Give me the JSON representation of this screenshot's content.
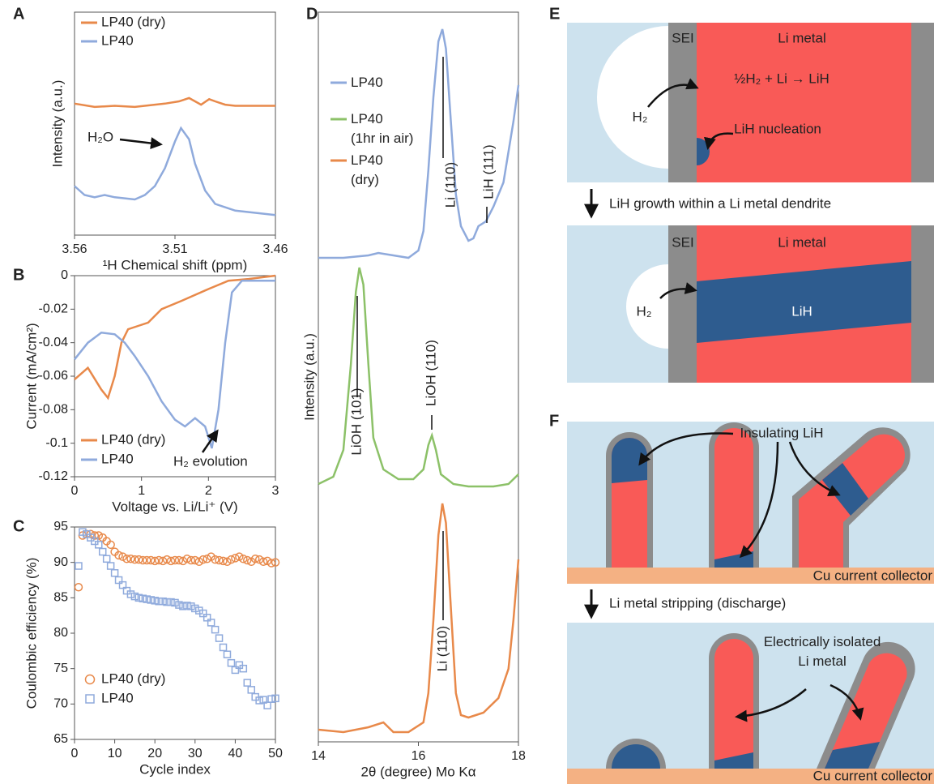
{
  "chart_data": [
    {
      "type": "line",
      "panel": "A",
      "xlabel": "¹H Chemical shift (ppm)",
      "ylabel": "Intensity (a.u.)",
      "xlim": [
        3.56,
        3.46
      ],
      "xticks": [
        3.56,
        3.51,
        3.46
      ],
      "ylim": [
        0,
        1
      ],
      "legend": "upper left",
      "annotations": [
        "H₂O"
      ],
      "series": [
        {
          "name": "LP40 (dry)",
          "color": "#e8894a",
          "x": [
            3.56,
            3.55,
            3.54,
            3.53,
            3.52,
            3.515,
            3.508,
            3.503,
            3.5,
            3.497,
            3.493,
            3.49,
            3.485,
            3.48,
            3.47,
            3.46
          ],
          "values": [
            0.59,
            0.575,
            0.58,
            0.575,
            0.585,
            0.59,
            0.6,
            0.615,
            0.6,
            0.585,
            0.61,
            0.6,
            0.585,
            0.58,
            0.58,
            0.58
          ]
        },
        {
          "name": "LP40",
          "color": "#8faadc",
          "x": [
            3.56,
            3.555,
            3.55,
            3.545,
            3.54,
            3.53,
            3.525,
            3.52,
            3.515,
            3.51,
            3.507,
            3.503,
            3.5,
            3.495,
            3.49,
            3.48,
            3.47,
            3.46
          ],
          "values": [
            0.22,
            0.18,
            0.17,
            0.18,
            0.17,
            0.16,
            0.18,
            0.22,
            0.3,
            0.42,
            0.48,
            0.43,
            0.32,
            0.2,
            0.14,
            0.11,
            0.1,
            0.09
          ]
        }
      ]
    },
    {
      "type": "line",
      "panel": "B",
      "xlabel": "Voltage vs. Li/Li⁺ (V)",
      "ylabel": "Current (mA/cm²)",
      "xlim": [
        0,
        3
      ],
      "xticks": [
        0,
        1,
        2,
        3
      ],
      "ylim": [
        -0.12,
        0
      ],
      "yticks": [
        0,
        -0.02,
        -0.04,
        -0.06,
        -0.08,
        -0.1,
        -0.12
      ],
      "legend": "lower left",
      "annotations": [
        "H₂ evolution"
      ],
      "series": [
        {
          "name": "LP40 (dry)",
          "color": "#e8894a",
          "x": [
            0,
            0.2,
            0.4,
            0.5,
            0.6,
            0.7,
            0.8,
            0.95,
            1.1,
            1.3,
            1.6,
            2,
            2.3,
            2.6,
            3
          ],
          "values": [
            -0.062,
            -0.055,
            -0.068,
            -0.073,
            -0.06,
            -0.04,
            -0.032,
            -0.03,
            -0.028,
            -0.02,
            -0.015,
            -0.008,
            -0.003,
            -0.002,
            0
          ]
        },
        {
          "name": "LP40",
          "color": "#8faadc",
          "x": [
            0,
            0.2,
            0.4,
            0.6,
            0.75,
            0.9,
            1.1,
            1.3,
            1.5,
            1.65,
            1.8,
            1.95,
            2.05,
            2.15,
            2.25,
            2.35,
            2.5,
            3
          ],
          "values": [
            -0.05,
            -0.04,
            -0.034,
            -0.035,
            -0.04,
            -0.048,
            -0.06,
            -0.075,
            -0.086,
            -0.09,
            -0.085,
            -0.09,
            -0.103,
            -0.08,
            -0.04,
            -0.01,
            -0.003,
            -0.003
          ]
        }
      ]
    },
    {
      "type": "scatter",
      "panel": "C",
      "xlabel": "Cycle index",
      "ylabel": "Coulombic efficiency (%)",
      "xlim": [
        0,
        50
      ],
      "xticks": [
        0,
        10,
        20,
        30,
        40,
        50
      ],
      "ylim": [
        65,
        95
      ],
      "yticks": [
        65,
        70,
        75,
        80,
        85,
        90,
        95
      ],
      "legend": "lower left",
      "x": [
        1,
        2,
        3,
        4,
        5,
        6,
        7,
        8,
        9,
        10,
        11,
        12,
        13,
        14,
        15,
        16,
        17,
        18,
        19,
        20,
        21,
        22,
        23,
        24,
        25,
        26,
        27,
        28,
        29,
        30,
        31,
        32,
        33,
        34,
        35,
        36,
        37,
        38,
        39,
        40,
        41,
        42,
        43,
        44,
        45,
        46,
        47,
        48,
        49,
        50
      ],
      "series": [
        {
          "name": "LP40 (dry)",
          "color": "#e8894a",
          "marker": "circle",
          "values": [
            86.5,
            93.8,
            94,
            94,
            93.8,
            93.8,
            93.5,
            93,
            92.5,
            91.5,
            91,
            90.8,
            90.5,
            90.5,
            90.4,
            90.4,
            90.3,
            90.3,
            90.3,
            90.2,
            90.3,
            90.2,
            90.4,
            90.2,
            90.3,
            90.3,
            90.2,
            90.5,
            90.3,
            90.3,
            90.1,
            90.4,
            90.5,
            90.8,
            90.4,
            90.3,
            90.2,
            90.1,
            90.4,
            90.6,
            90.8,
            90.5,
            90.3,
            90.1,
            90.5,
            90.4,
            90.1,
            90.2,
            89.9,
            90.0
          ]
        },
        {
          "name": "LP40",
          "color": "#8faadc",
          "marker": "square",
          "values": [
            89.5,
            94.3,
            94,
            93.5,
            93,
            92.5,
            91.5,
            90.5,
            89.5,
            88.5,
            87.5,
            86.8,
            86,
            85.5,
            85.2,
            85,
            84.9,
            84.8,
            84.7,
            84.6,
            84.5,
            84.5,
            84.4,
            84.4,
            84.3,
            84,
            83.8,
            83.9,
            83.8,
            83.5,
            83.2,
            82.8,
            82.2,
            81.5,
            80.5,
            79.3,
            78,
            77,
            75.8,
            74.8,
            75.5,
            75,
            73,
            72,
            71,
            70.5,
            70.6,
            69.8,
            70.7,
            70.8
          ]
        }
      ]
    },
    {
      "type": "line",
      "panel": "D",
      "xlabel": "2θ (degree) Mo Kα",
      "ylabel": "Intensity (a.u.)",
      "xlim": [
        14,
        18
      ],
      "xticks": [
        14,
        16,
        18
      ],
      "ylim": [
        0,
        3
      ],
      "legend": "upper left",
      "annotations": [
        "Li (110)",
        "LiH (111)",
        "LiOH (101)",
        "LiOH (110)",
        "Li (110)"
      ],
      "series": [
        {
          "name": "LP40",
          "color": "#8faadc",
          "x": [
            14,
            14.5,
            15,
            15.2,
            15.5,
            15.8,
            16,
            16.1,
            16.2,
            16.3,
            16.4,
            16.48,
            16.55,
            16.65,
            16.75,
            16.85,
            17,
            17.1,
            17.2,
            17.35,
            17.5,
            17.7,
            17.9,
            18
          ],
          "values": [
            1.99,
            1.99,
            2,
            2.01,
            2,
            1.99,
            2.02,
            2.1,
            2.35,
            2.65,
            2.88,
            2.93,
            2.85,
            2.55,
            2.25,
            2.12,
            2.06,
            2.07,
            2.12,
            2.14,
            2.2,
            2.3,
            2.55,
            2.7
          ]
        },
        {
          "name": "LP40\n(1hr in air)",
          "color": "#8cc168",
          "x": [
            14,
            14.3,
            14.5,
            14.65,
            14.75,
            14.82,
            14.9,
            15,
            15.1,
            15.3,
            15.6,
            15.9,
            16.1,
            16.2,
            16.27,
            16.35,
            16.45,
            16.7,
            17,
            17.5,
            17.8,
            18
          ],
          "values": [
            1.06,
            1.09,
            1.2,
            1.55,
            1.85,
            1.95,
            1.88,
            1.55,
            1.25,
            1.12,
            1.08,
            1.08,
            1.12,
            1.22,
            1.26,
            1.2,
            1.1,
            1.06,
            1.05,
            1.05,
            1.06,
            1.1
          ]
        },
        {
          "name": "LP40\n(dry)",
          "color": "#e8894a",
          "x": [
            14,
            14.5,
            15,
            15.3,
            15.5,
            15.8,
            16.1,
            16.2,
            16.3,
            16.4,
            16.48,
            16.55,
            16.65,
            16.75,
            16.85,
            17,
            17.3,
            17.6,
            17.8,
            17.9,
            18
          ],
          "values": [
            0.05,
            0.04,
            0.06,
            0.08,
            0.04,
            0.04,
            0.08,
            0.2,
            0.5,
            0.85,
            0.98,
            0.9,
            0.55,
            0.2,
            0.11,
            0.1,
            0.12,
            0.18,
            0.3,
            0.5,
            0.75
          ]
        }
      ]
    }
  ],
  "diagram_E": {
    "panel": "E",
    "step1": {
      "sei": "SEI",
      "li_metal": "Li metal",
      "reaction": "½H₂ + Li → LiH",
      "h2": "H₂",
      "nucleation": "LiH nucleation"
    },
    "transition": "LiH growth within a Li metal dendrite",
    "step2": {
      "sei": "SEI",
      "li_metal": "Li metal",
      "h2": "H₂",
      "lih": "LiH"
    }
  },
  "diagram_F": {
    "panel": "F",
    "step1": {
      "label": "Insulating LiH",
      "collector": "Cu current collector"
    },
    "transition": "Li metal stripping (discharge)",
    "step2": {
      "label": "Electrically isolated\nLi metal",
      "collector": "Cu current collector"
    }
  }
}
